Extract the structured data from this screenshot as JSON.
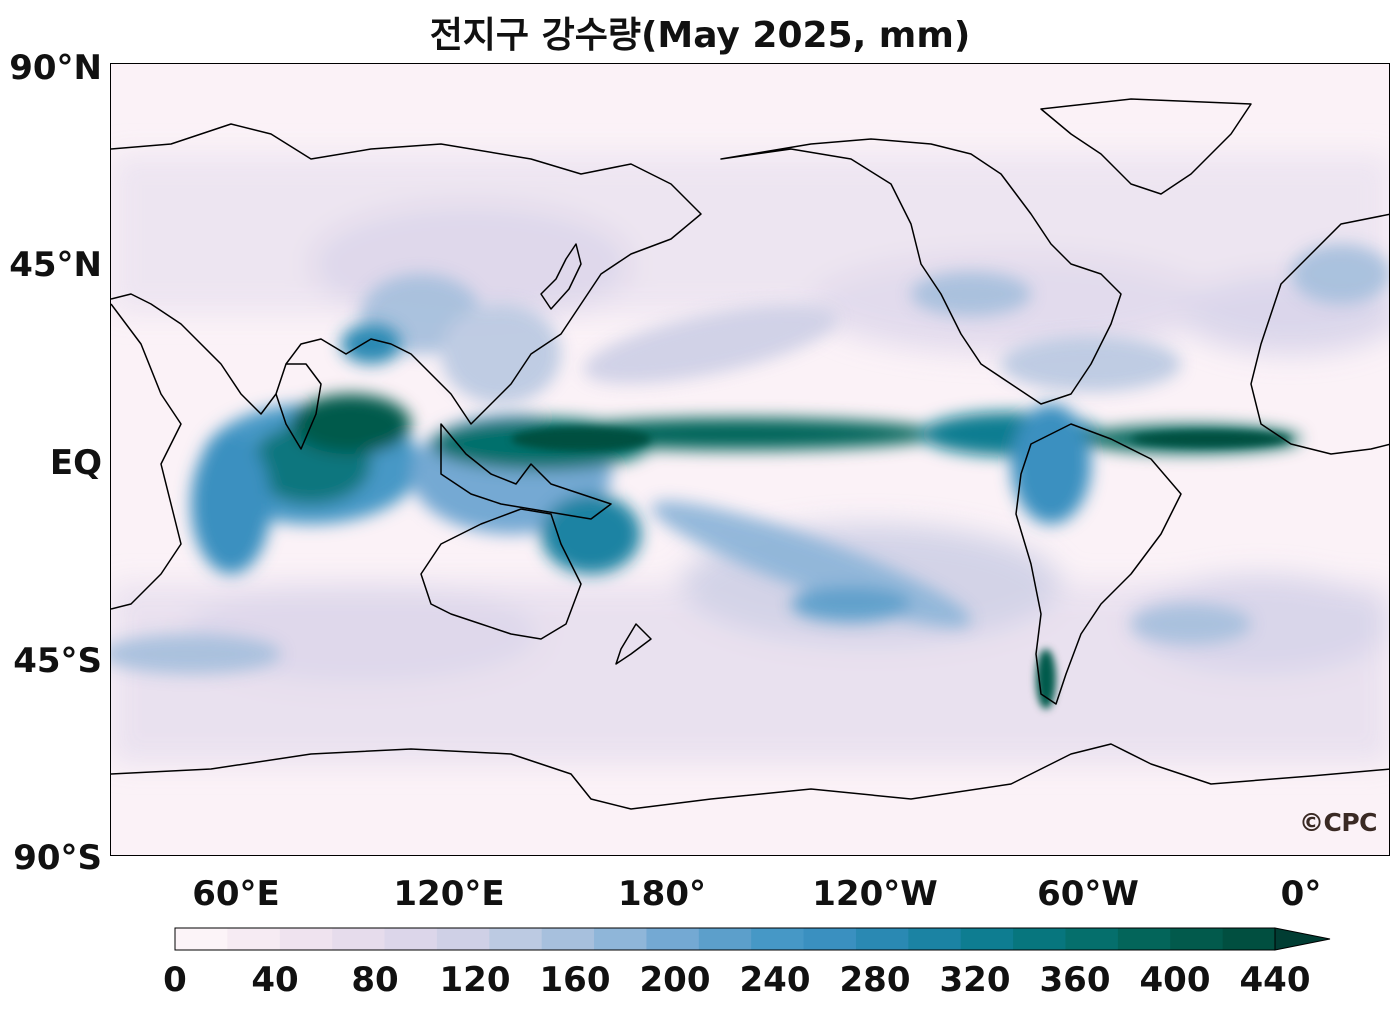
{
  "title": "전지구 강수량(May 2025, mm)",
  "map": {
    "central_longitude": "180°",
    "lat_ticks": [
      "90°N",
      "45°N",
      "EQ",
      "45°S",
      "90°S"
    ],
    "lon_ticks": [
      "60°E",
      "120°E",
      "180°",
      "120°W",
      "60°W",
      "0°"
    ],
    "watermark": "©CPC"
  },
  "colorbar": {
    "ticks": [
      "0",
      "40",
      "80",
      "120",
      "160",
      "200",
      "240",
      "280",
      "320",
      "360",
      "400",
      "440"
    ],
    "colors": [
      "#fcf4f8",
      "#f6ebf3",
      "#efe3ef",
      "#e6dcec",
      "#dcd6ea",
      "#cfd0e6",
      "#bccae2",
      "#a7c0dd",
      "#8fb6d9",
      "#74a9d3",
      "#5c9fcb",
      "#4698c6",
      "#3a90c0",
      "#2a89b3",
      "#1b83a3",
      "#0e7d91",
      "#07767e",
      "#056f6c",
      "#03655a",
      "#025a4c",
      "#014f40"
    ],
    "extend": "max"
  }
}
